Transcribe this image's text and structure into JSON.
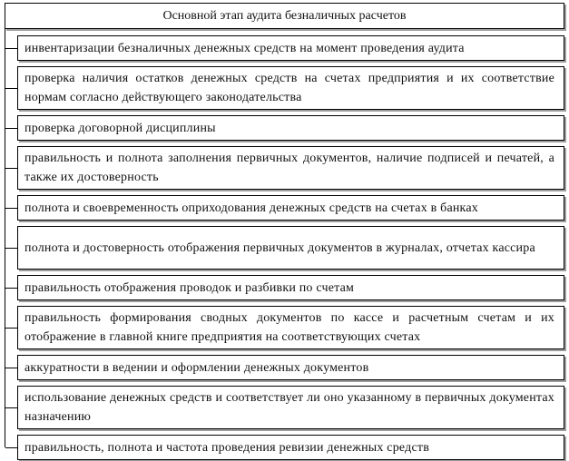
{
  "diagram": {
    "title": "Основной этап аудита безналичных расчетов",
    "items": [
      {
        "text": "инвентаризации безналичных денежных средств на момент проведения аудита"
      },
      {
        "text": "проверка наличия остатков денежных средств на счетах предприятия и их соответствие нормам согласно действующего законодательства"
      },
      {
        "text": "проверка договорной дисциплины"
      },
      {
        "text": "правильность и полнота заполнения первичных документов, наличие подписей и печатей, а также их достоверность"
      },
      {
        "text": "полнота и своевременность оприходования денежных средств на счетах в банках"
      },
      {
        "text": "полнота и достоверность отображения первичных документов в журналах, отчетах кассира"
      },
      {
        "text": "правильность отображения проводок и разбивки по счетам"
      },
      {
        "text": "правильность формирования сводных документов по кассе и расчетным счетам и их отображение в главной книге предприятия на соответствующих счетах"
      },
      {
        "text": "аккуратности в ведении и оформлении денежных документов"
      },
      {
        "text": "использование денежных средств и соответствует ли оно указанному в первичных документах назначению"
      },
      {
        "text": "правильность, полнота и частота проведения ревизии денежных средств"
      }
    ],
    "colors": {
      "border": "#000000",
      "shadow": "#9e9e9e",
      "background": "#ffffff",
      "text": "#111111"
    }
  }
}
